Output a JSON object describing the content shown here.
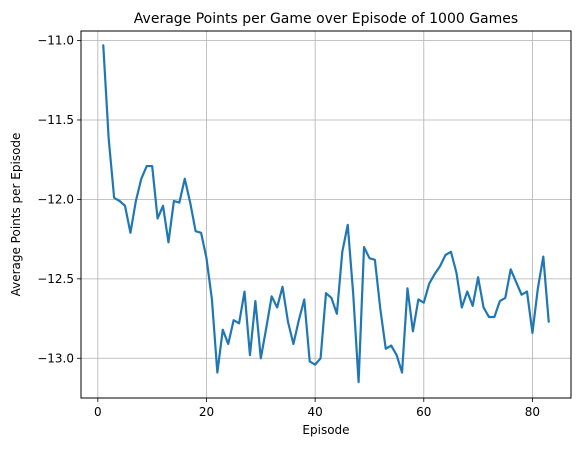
{
  "chart_data": {
    "type": "line",
    "title": "Average Points per Game over Episode of 1000 Games",
    "xlabel": "Episode",
    "ylabel": "Average Points per Episode",
    "xlim": [
      -3.1,
      87.1
    ],
    "ylim": [
      -13.25,
      -10.94
    ],
    "xticks": [
      0,
      20,
      40,
      60,
      80
    ],
    "yticks": [
      -13.0,
      -12.5,
      -12.0,
      -11.5,
      -11.0
    ],
    "xtick_labels": [
      "0",
      "20",
      "40",
      "60",
      "80"
    ],
    "ytick_labels": [
      "−13.0",
      "−12.5",
      "−12.0",
      "−11.5",
      "−11.0"
    ],
    "grid": true,
    "line_color": "#1f77b4",
    "series": [
      {
        "x": [
          1,
          2,
          3,
          4,
          5,
          6,
          7,
          8,
          9,
          10,
          11,
          12,
          13,
          14,
          15,
          16,
          17,
          18,
          19,
          20,
          21,
          22,
          23,
          24,
          25,
          26,
          27,
          28,
          29,
          30,
          31,
          32,
          33,
          34,
          35,
          36,
          37,
          38,
          39,
          40,
          41,
          42,
          43,
          44,
          45,
          46,
          47,
          48,
          49,
          50,
          51,
          52,
          53,
          54,
          55,
          56,
          57,
          58,
          59,
          60,
          61,
          62,
          63,
          64,
          65,
          66,
          67,
          68,
          69,
          70,
          71,
          72,
          73,
          74,
          75,
          76,
          77,
          78,
          79,
          80,
          81,
          82,
          83
        ],
        "values": [
          -11.03,
          -11.62,
          -11.99,
          -12.01,
          -12.04,
          -12.21,
          -12.01,
          -11.87,
          -11.79,
          -11.79,
          -12.12,
          -12.04,
          -12.27,
          -12.01,
          -12.02,
          -11.87,
          -12.02,
          -12.2,
          -12.21,
          -12.37,
          -12.63,
          -13.09,
          -12.82,
          -12.91,
          -12.76,
          -12.78,
          -12.58,
          -12.98,
          -12.64,
          -13.0,
          -12.81,
          -12.61,
          -12.68,
          -12.55,
          -12.77,
          -12.91,
          -12.76,
          -12.63,
          -13.02,
          -13.04,
          -13.0,
          -12.59,
          -12.62,
          -12.72,
          -12.33,
          -12.16,
          -12.59,
          -13.15,
          -12.3,
          -12.37,
          -12.38,
          -12.69,
          -12.94,
          -12.92,
          -12.98,
          -13.09,
          -12.56,
          -12.83,
          -12.63,
          -12.65,
          -12.53,
          -12.47,
          -12.42,
          -12.35,
          -12.33,
          -12.46,
          -12.68,
          -12.58,
          -12.67,
          -12.49,
          -12.68,
          -12.74,
          -12.74,
          -12.64,
          -12.62,
          -12.44,
          -12.52,
          -12.6,
          -12.58,
          -12.84,
          -12.56,
          -12.36,
          -12.77
        ]
      }
    ]
  }
}
